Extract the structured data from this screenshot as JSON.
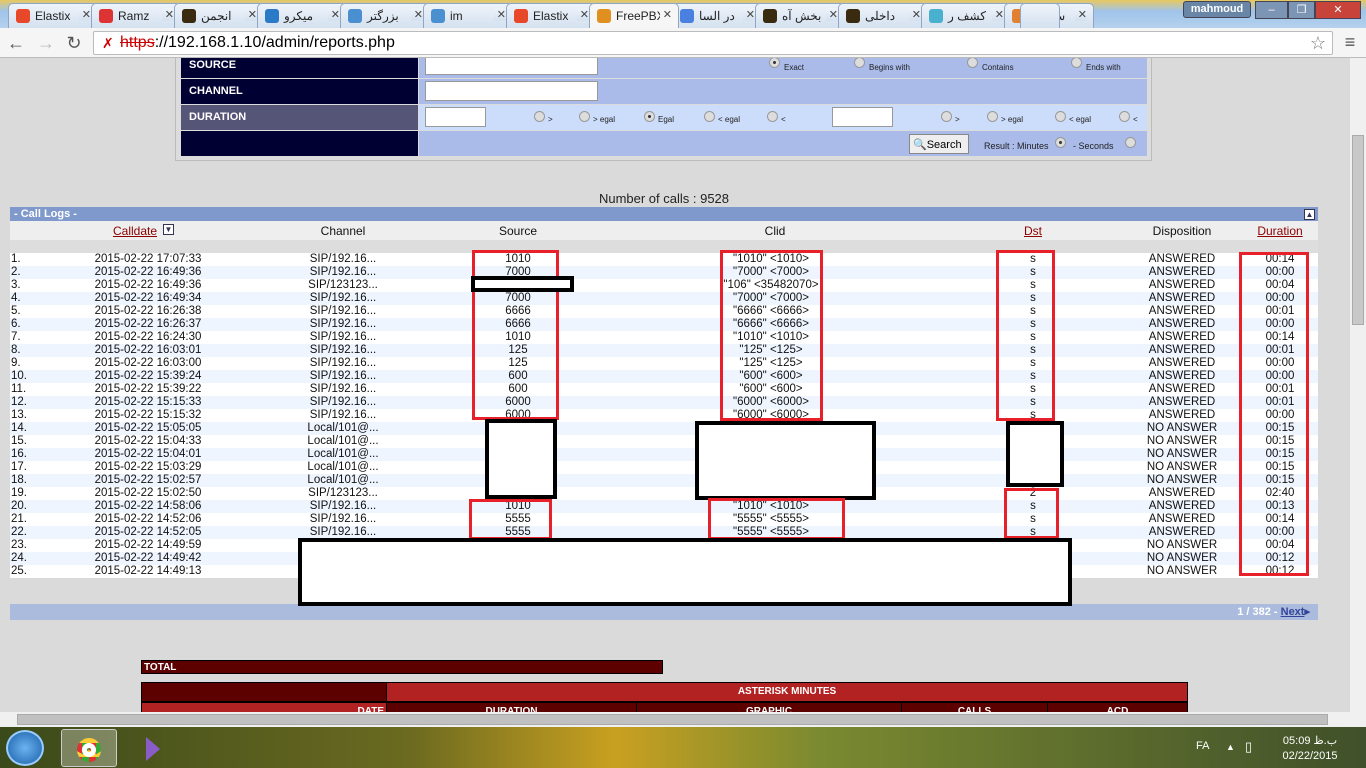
{
  "browser": {
    "tabs": [
      {
        "title": "Elastix",
        "icon": "elastix-icon",
        "color": "#e8482a"
      },
      {
        "title": "Ramz",
        "icon": "gmail-icon",
        "color": "#d33"
      },
      {
        "title": "انجمن",
        "icon": "forum-icon",
        "color": "#3a2a10"
      },
      {
        "title": "میکرو",
        "icon": "grid-icon",
        "color": "#2a7ac8"
      },
      {
        "title": "بزرگتر",
        "icon": "bird-icon",
        "color": "#4a90d0"
      },
      {
        "title": "im",
        "icon": "bird-icon",
        "color": "#4a90d0"
      },
      {
        "title": "Elastix",
        "icon": "elastix-icon",
        "color": "#e8482a"
      },
      {
        "title": "FreePBX",
        "icon": "freepbx-icon",
        "color": "#e09020",
        "active": true
      },
      {
        "title": "در السا",
        "icon": "google-icon",
        "color": "#4a80e0"
      },
      {
        "title": "بخش آه",
        "icon": "forum-icon",
        "color": "#3a2a10"
      },
      {
        "title": "داخلی",
        "icon": "forum-icon",
        "color": "#3a2a10"
      },
      {
        "title": "کشف ر",
        "icon": "bird-icon",
        "color": "#4ab0d0"
      },
      {
        "title": "ساختار",
        "icon": "star-icon",
        "color": "#e08030"
      }
    ],
    "user": "mahmoud",
    "url_scheme": "https",
    "url_rest": "://192.168.1.10/admin/reports.php"
  },
  "form": {
    "source_label": "SOURCE",
    "channel_label": "CHANNEL",
    "duration_label": "DURATION",
    "match_options": [
      "Exact",
      "Begins with",
      "Contains",
      "Ends with"
    ],
    "duration_options_1": [
      ">",
      "> egal",
      "Egal",
      "< egal",
      "<"
    ],
    "duration_options_2": [
      ">",
      "> egal",
      "< egal",
      "<"
    ],
    "search_label": "Search",
    "result_label": "Result : Minutes",
    "seconds_label": "- Seconds"
  },
  "summary": {
    "number_of_calls": "Number of calls : 9528"
  },
  "call_logs": {
    "title": "- Call Logs -",
    "columns": [
      "Calldate",
      "Channel",
      "Source",
      "Clid",
      "Dst",
      "Disposition",
      "Duration"
    ],
    "rows": [
      [
        "1.",
        "2015-02-22 17:07:33",
        "SIP/192.16...",
        "1010",
        "\"1010\" <1010>",
        "s",
        "ANSWERED",
        "00:14"
      ],
      [
        "2.",
        "2015-02-22 16:49:36",
        "SIP/192.16...",
        "7000",
        "\"7000\" <7000>",
        "s",
        "ANSWERED",
        "00:00"
      ],
      [
        "3.",
        "2015-02-22 16:49:36",
        "SIP/123123...",
        "",
        "\"106\" <35482070>",
        "s",
        "ANSWERED",
        "00:04"
      ],
      [
        "4.",
        "2015-02-22 16:49:34",
        "SIP/192.16...",
        "7000",
        "\"7000\" <7000>",
        "s",
        "ANSWERED",
        "00:00"
      ],
      [
        "5.",
        "2015-02-22 16:26:38",
        "SIP/192.16...",
        "6666",
        "\"6666\" <6666>",
        "s",
        "ANSWERED",
        "00:01"
      ],
      [
        "6.",
        "2015-02-22 16:26:37",
        "SIP/192.16...",
        "6666",
        "\"6666\" <6666>",
        "s",
        "ANSWERED",
        "00:00"
      ],
      [
        "7.",
        "2015-02-22 16:24:30",
        "SIP/192.16...",
        "1010",
        "\"1010\" <1010>",
        "s",
        "ANSWERED",
        "00:14"
      ],
      [
        "8.",
        "2015-02-22 16:03:01",
        "SIP/192.16...",
        "125",
        "\"125\" <125>",
        "s",
        "ANSWERED",
        "00:01"
      ],
      [
        "9.",
        "2015-02-22 16:03:00",
        "SIP/192.16...",
        "125",
        "\"125\" <125>",
        "s",
        "ANSWERED",
        "00:00"
      ],
      [
        "10.",
        "2015-02-22 15:39:24",
        "SIP/192.16...",
        "600",
        "\"600\" <600>",
        "s",
        "ANSWERED",
        "00:00"
      ],
      [
        "11.",
        "2015-02-22 15:39:22",
        "SIP/192.16...",
        "600",
        "\"600\" <600>",
        "s",
        "ANSWERED",
        "00:01"
      ],
      [
        "12.",
        "2015-02-22 15:15:33",
        "SIP/192.16...",
        "6000",
        "\"6000\" <6000>",
        "s",
        "ANSWERED",
        "00:01"
      ],
      [
        "13.",
        "2015-02-22 15:15:32",
        "SIP/192.16...",
        "6000",
        "\"6000\" <6000>",
        "s",
        "ANSWERED",
        "00:00"
      ],
      [
        "14.",
        "2015-02-22 15:05:05",
        "Local/101@...",
        "",
        "",
        "",
        "NO ANSWER",
        "00:15"
      ],
      [
        "15.",
        "2015-02-22 15:04:33",
        "Local/101@...",
        "",
        "",
        "",
        "NO ANSWER",
        "00:15"
      ],
      [
        "16.",
        "2015-02-22 15:04:01",
        "Local/101@...",
        "",
        "",
        "",
        "NO ANSWER",
        "00:15"
      ],
      [
        "17.",
        "2015-02-22 15:03:29",
        "Local/101@...",
        "",
        "",
        "",
        "NO ANSWER",
        "00:15"
      ],
      [
        "18.",
        "2015-02-22 15:02:57",
        "Local/101@...",
        "",
        "",
        "",
        "NO ANSWER",
        "00:15"
      ],
      [
        "19.",
        "2015-02-22 15:02:50",
        "SIP/123123...",
        "",
        "",
        "2",
        "ANSWERED",
        "02:40"
      ],
      [
        "20.",
        "2015-02-22 14:58:06",
        "SIP/192.16...",
        "1010",
        "\"1010\" <1010>",
        "s",
        "ANSWERED",
        "00:13"
      ],
      [
        "21.",
        "2015-02-22 14:52:06",
        "SIP/192.16...",
        "5555",
        "\"5555\" <5555>",
        "s",
        "ANSWERED",
        "00:14"
      ],
      [
        "22.",
        "2015-02-22 14:52:05",
        "SIP/192.16...",
        "5555",
        "\"5555\" <5555>",
        "s",
        "ANSWERED",
        "00:00"
      ],
      [
        "23.",
        "2015-02-22 14:49:59",
        "",
        "",
        "",
        "",
        "NO ANSWER",
        "00:04"
      ],
      [
        "24.",
        "2015-02-22 14:49:42",
        "",
        "",
        "",
        "",
        "NO ANSWER",
        "00:12"
      ],
      [
        "25.",
        "2015-02-22 14:49:13",
        "",
        "",
        "",
        "",
        "NO ANSWER",
        "00:12"
      ]
    ],
    "pager": "1 / 382 - ",
    "next": "Next"
  },
  "totals": {
    "title": "TOTAL",
    "group": "ASTERISK MINUTES",
    "columns": [
      "DATE",
      "DURATION",
      "GRAPHIC",
      "CALLS",
      "ACD"
    ]
  },
  "taskbar": {
    "lang": "FA",
    "time": "05:09 ب.ظ",
    "date": "02/22/2015"
  },
  "colors": {
    "form_label": "#000033",
    "form_value": "#aabbea",
    "log_header": "#7f99cc",
    "total_dark": "#5c0000",
    "total_red": "#b22222",
    "sort_link": "#8b0000"
  }
}
